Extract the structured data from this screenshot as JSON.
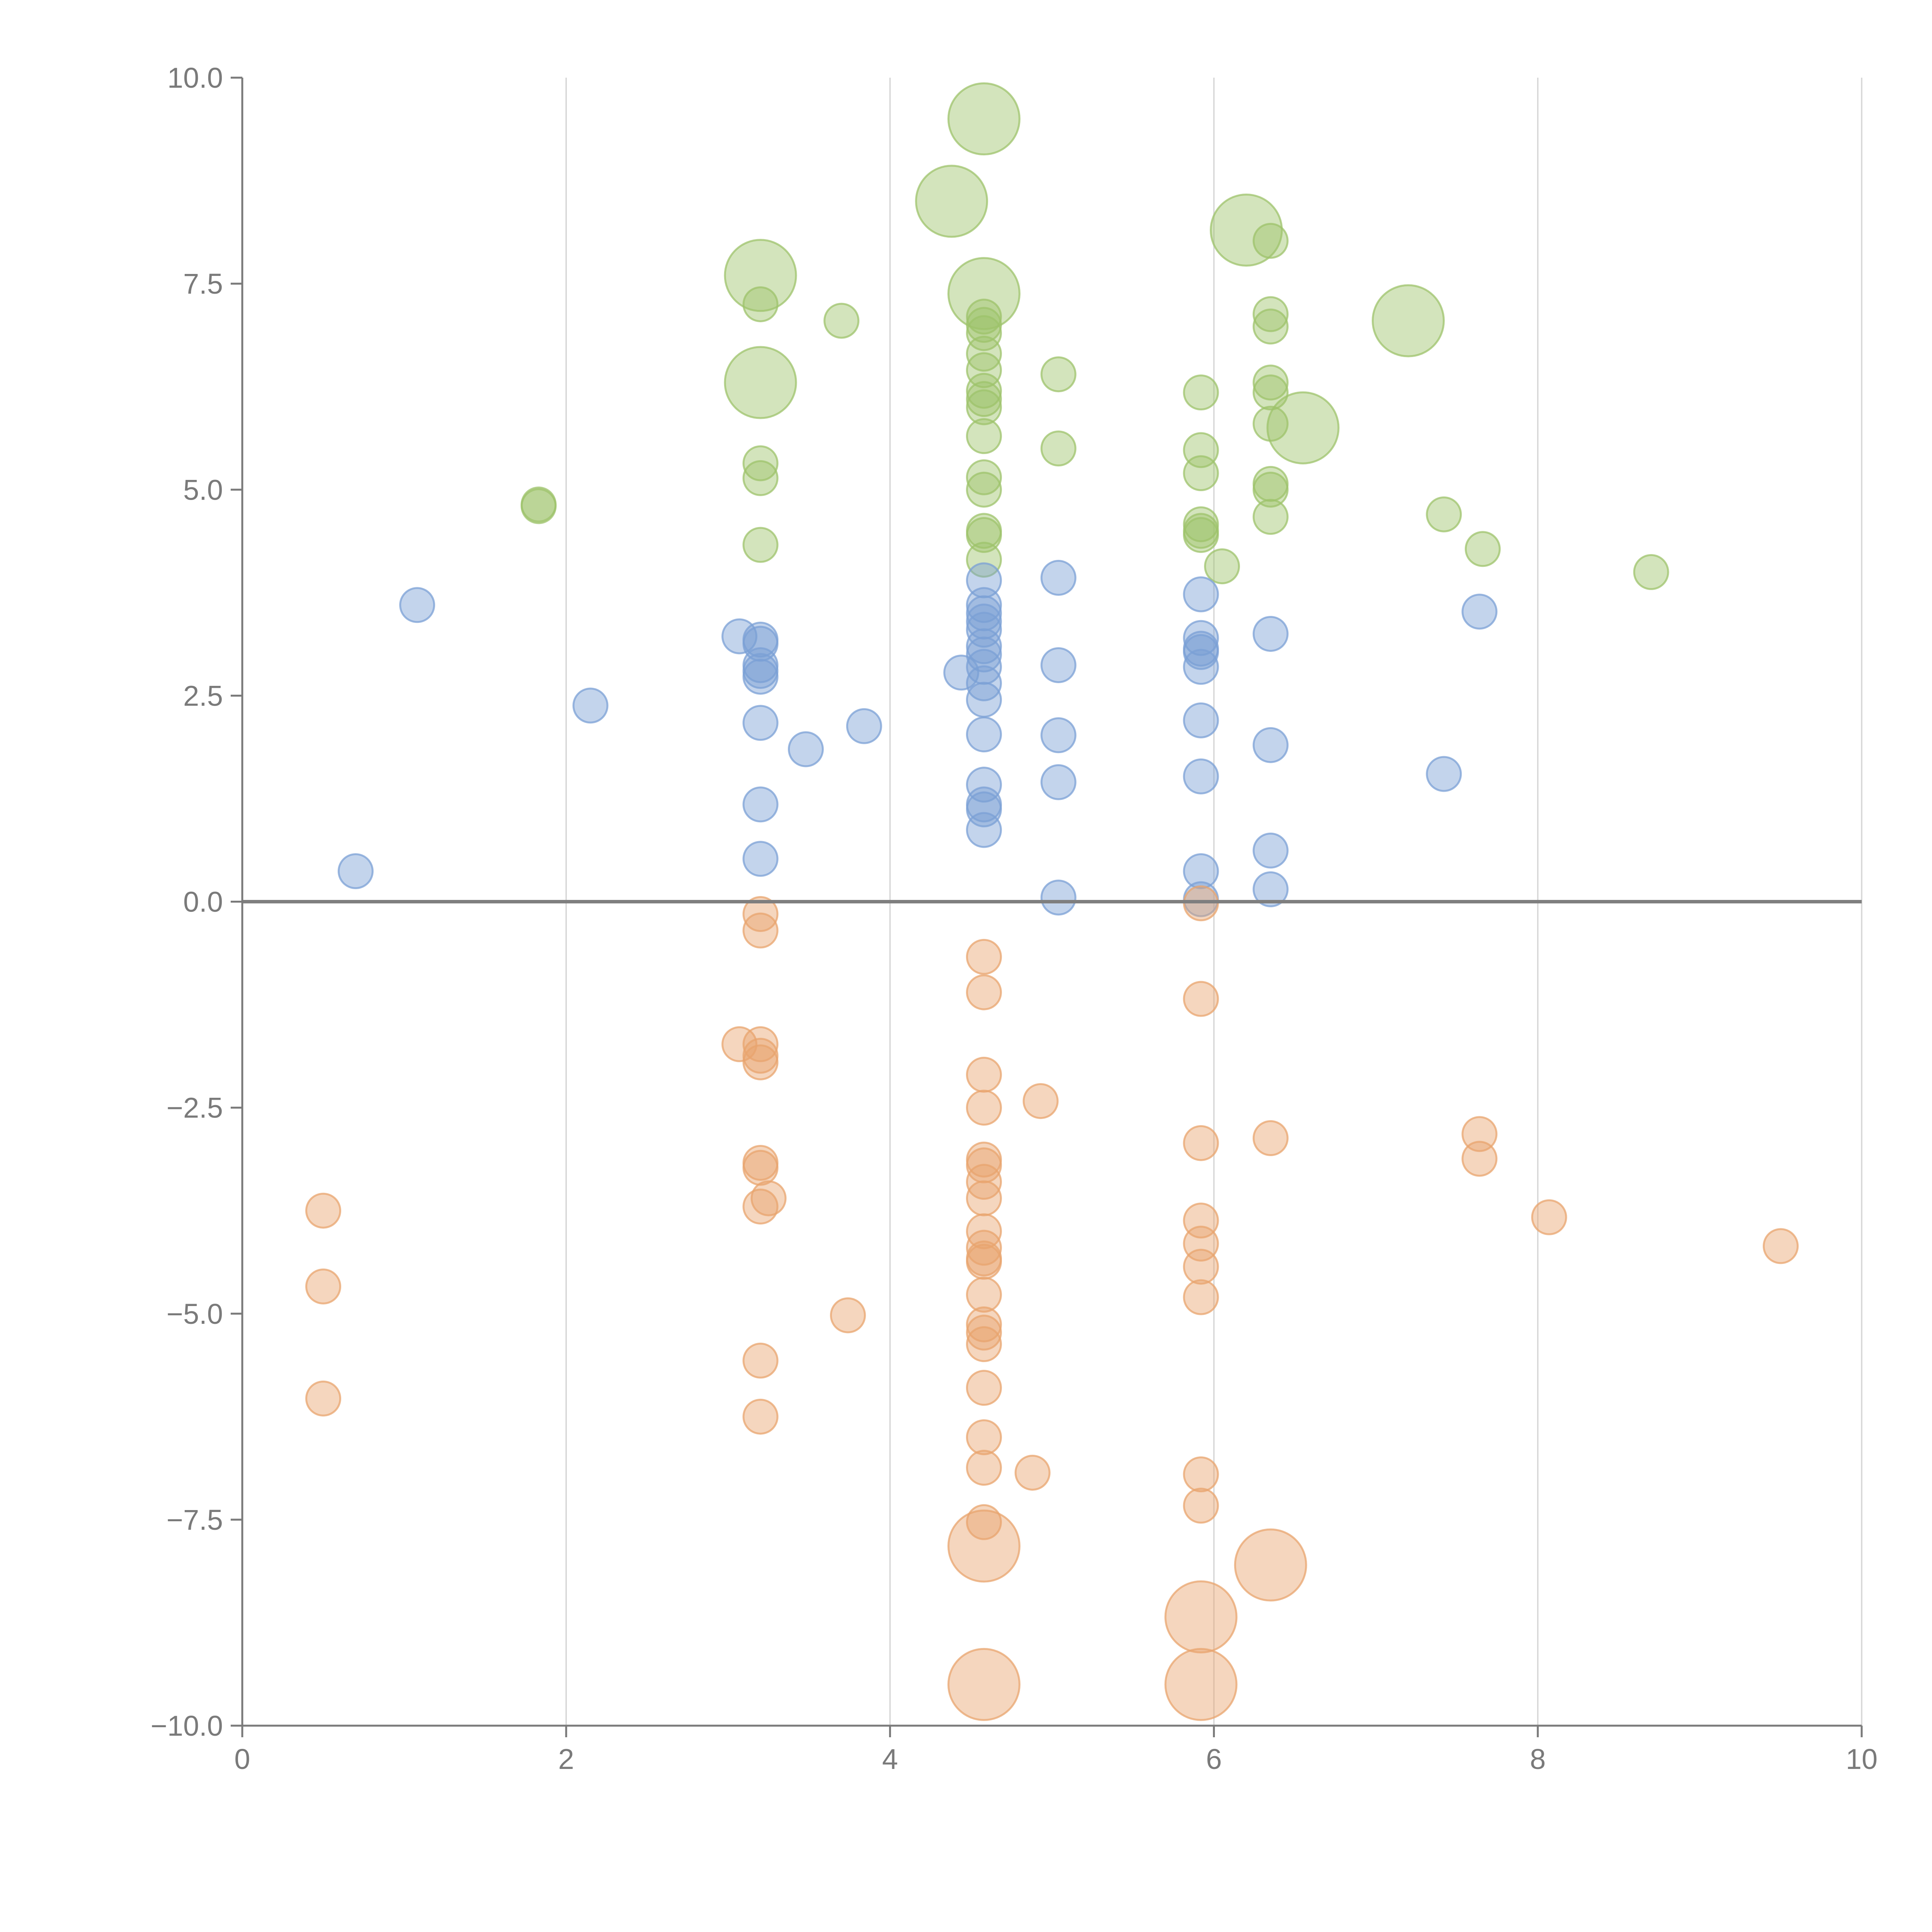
{
  "chart_data": {
    "type": "scatter",
    "xlim": [
      0,
      10
    ],
    "ylim": [
      -10,
      10
    ],
    "x_ticks": [
      0,
      2,
      4,
      6,
      8,
      10
    ],
    "y_ticks": [
      -10,
      -7.5,
      -5,
      -2.5,
      0,
      2.5,
      5,
      7.5,
      10
    ],
    "x_tick_labels": [
      "0",
      "2",
      "4",
      "6",
      "8",
      "10"
    ],
    "y_tick_labels": [
      "−10.0",
      "−7.5",
      "−5.0",
      "−2.5",
      "0.0",
      "2.5",
      "5.0",
      "7.5",
      "10.0"
    ],
    "grid": "vertical",
    "zero_line": true,
    "bubble_sizes": "small (about 0.3 x-units across) and large (about 0.6 x-units across)",
    "series": [
      {
        "color": "#9dc36b",
        "points": [
          {
            "x": 1.83,
            "y": 4.8,
            "size": "small"
          },
          {
            "x": 1.83,
            "y": 4.82,
            "size": "small"
          },
          {
            "x": 3.2,
            "y": 7.25,
            "size": "small"
          },
          {
            "x": 3.2,
            "y": 5.32,
            "size": "small"
          },
          {
            "x": 3.2,
            "y": 5.14,
            "size": "small"
          },
          {
            "x": 3.2,
            "y": 4.33,
            "size": "small"
          },
          {
            "x": 3.7,
            "y": 7.05,
            "size": "small"
          },
          {
            "x": 4.58,
            "y": 7.1,
            "size": "small"
          },
          {
            "x": 4.58,
            "y": 7.0,
            "size": "small"
          },
          {
            "x": 4.58,
            "y": 6.9,
            "size": "small"
          },
          {
            "x": 4.58,
            "y": 6.65,
            "size": "small"
          },
          {
            "x": 4.58,
            "y": 6.45,
            "size": "small"
          },
          {
            "x": 4.58,
            "y": 6.2,
            "size": "small"
          },
          {
            "x": 4.58,
            "y": 6.1,
            "size": "small"
          },
          {
            "x": 4.58,
            "y": 6.0,
            "size": "small"
          },
          {
            "x": 4.58,
            "y": 5.65,
            "size": "small"
          },
          {
            "x": 4.58,
            "y": 5.15,
            "size": "small"
          },
          {
            "x": 4.58,
            "y": 5.0,
            "size": "small"
          },
          {
            "x": 4.58,
            "y": 4.5,
            "size": "small"
          },
          {
            "x": 4.58,
            "y": 4.45,
            "size": "small"
          },
          {
            "x": 4.58,
            "y": 4.15,
            "size": "small"
          },
          {
            "x": 5.04,
            "y": 6.4,
            "size": "small"
          },
          {
            "x": 5.04,
            "y": 5.5,
            "size": "small"
          },
          {
            "x": 5.92,
            "y": 6.18,
            "size": "small"
          },
          {
            "x": 5.92,
            "y": 5.48,
            "size": "small"
          },
          {
            "x": 5.92,
            "y": 5.2,
            "size": "small"
          },
          {
            "x": 5.92,
            "y": 4.58,
            "size": "small"
          },
          {
            "x": 5.92,
            "y": 4.5,
            "size": "small"
          },
          {
            "x": 5.92,
            "y": 4.45,
            "size": "small"
          },
          {
            "x": 6.05,
            "y": 4.07,
            "size": "small"
          },
          {
            "x": 6.35,
            "y": 8.02,
            "size": "small"
          },
          {
            "x": 6.35,
            "y": 7.13,
            "size": "small"
          },
          {
            "x": 6.35,
            "y": 6.98,
            "size": "small"
          },
          {
            "x": 6.35,
            "y": 6.3,
            "size": "small"
          },
          {
            "x": 6.35,
            "y": 6.18,
            "size": "small"
          },
          {
            "x": 6.35,
            "y": 5.8,
            "size": "small"
          },
          {
            "x": 6.35,
            "y": 5.07,
            "size": "small"
          },
          {
            "x": 6.35,
            "y": 5.0,
            "size": "small"
          },
          {
            "x": 6.35,
            "y": 4.67,
            "size": "small"
          },
          {
            "x": 7.42,
            "y": 4.7,
            "size": "small"
          },
          {
            "x": 7.66,
            "y": 4.28,
            "size": "small"
          },
          {
            "x": 8.7,
            "y": 4.0,
            "size": "small"
          },
          {
            "x": 4.58,
            "y": 9.5,
            "size": "large"
          },
          {
            "x": 4.38,
            "y": 8.5,
            "size": "large"
          },
          {
            "x": 3.2,
            "y": 7.6,
            "size": "large"
          },
          {
            "x": 4.58,
            "y": 7.38,
            "size": "large"
          },
          {
            "x": 3.2,
            "y": 6.3,
            "size": "large"
          },
          {
            "x": 6.2,
            "y": 8.15,
            "size": "large"
          },
          {
            "x": 7.2,
            "y": 7.05,
            "size": "large"
          },
          {
            "x": 6.55,
            "y": 5.75,
            "size": "large"
          }
        ]
      },
      {
        "color": "#7ba0d5",
        "points": [
          {
            "x": 0.7,
            "y": 0.37,
            "size": "small"
          },
          {
            "x": 1.08,
            "y": 3.6,
            "size": "small"
          },
          {
            "x": 2.15,
            "y": 2.38,
            "size": "small"
          },
          {
            "x": 3.07,
            "y": 3.22,
            "size": "small"
          },
          {
            "x": 3.2,
            "y": 3.18,
            "size": "small"
          },
          {
            "x": 3.2,
            "y": 3.13,
            "size": "small"
          },
          {
            "x": 3.2,
            "y": 2.87,
            "size": "small"
          },
          {
            "x": 3.2,
            "y": 2.8,
            "size": "small"
          },
          {
            "x": 3.2,
            "y": 2.73,
            "size": "small"
          },
          {
            "x": 3.2,
            "y": 2.17,
            "size": "small"
          },
          {
            "x": 3.2,
            "y": 1.18,
            "size": "small"
          },
          {
            "x": 3.2,
            "y": 0.52,
            "size": "small"
          },
          {
            "x": 3.48,
            "y": 1.85,
            "size": "small"
          },
          {
            "x": 3.84,
            "y": 2.13,
            "size": "small"
          },
          {
            "x": 4.44,
            "y": 2.78,
            "size": "small"
          },
          {
            "x": 4.58,
            "y": 3.9,
            "size": "small"
          },
          {
            "x": 4.58,
            "y": 3.6,
            "size": "small"
          },
          {
            "x": 4.58,
            "y": 3.5,
            "size": "small"
          },
          {
            "x": 4.58,
            "y": 3.4,
            "size": "small"
          },
          {
            "x": 4.58,
            "y": 3.3,
            "size": "small"
          },
          {
            "x": 4.58,
            "y": 3.1,
            "size": "small"
          },
          {
            "x": 4.58,
            "y": 3.0,
            "size": "small"
          },
          {
            "x": 4.58,
            "y": 2.85,
            "size": "small"
          },
          {
            "x": 4.58,
            "y": 2.65,
            "size": "small"
          },
          {
            "x": 4.58,
            "y": 2.45,
            "size": "small"
          },
          {
            "x": 4.58,
            "y": 2.03,
            "size": "small"
          },
          {
            "x": 4.58,
            "y": 1.42,
            "size": "small"
          },
          {
            "x": 4.58,
            "y": 1.18,
            "size": "small"
          },
          {
            "x": 4.58,
            "y": 1.12,
            "size": "small"
          },
          {
            "x": 4.58,
            "y": 0.87,
            "size": "small"
          },
          {
            "x": 5.04,
            "y": 3.93,
            "size": "small"
          },
          {
            "x": 5.04,
            "y": 2.87,
            "size": "small"
          },
          {
            "x": 5.04,
            "y": 2.02,
            "size": "small"
          },
          {
            "x": 5.04,
            "y": 1.45,
            "size": "small"
          },
          {
            "x": 5.04,
            "y": 0.05,
            "size": "small"
          },
          {
            "x": 5.92,
            "y": 3.73,
            "size": "small"
          },
          {
            "x": 5.92,
            "y": 3.2,
            "size": "small"
          },
          {
            "x": 5.92,
            "y": 3.07,
            "size": "small"
          },
          {
            "x": 5.92,
            "y": 3.03,
            "size": "small"
          },
          {
            "x": 5.92,
            "y": 2.85,
            "size": "small"
          },
          {
            "x": 5.92,
            "y": 2.2,
            "size": "small"
          },
          {
            "x": 5.92,
            "y": 1.52,
            "size": "small"
          },
          {
            "x": 5.92,
            "y": 0.37,
            "size": "small"
          },
          {
            "x": 5.92,
            "y": 0.03,
            "size": "small"
          },
          {
            "x": 6.35,
            "y": 3.25,
            "size": "small"
          },
          {
            "x": 6.35,
            "y": 1.9,
            "size": "small"
          },
          {
            "x": 6.35,
            "y": 0.62,
            "size": "small"
          },
          {
            "x": 6.35,
            "y": 0.15,
            "size": "small"
          },
          {
            "x": 7.42,
            "y": 1.55,
            "size": "small"
          },
          {
            "x": 7.64,
            "y": 3.52,
            "size": "small"
          }
        ]
      },
      {
        "color": "#e8a46e",
        "points": [
          {
            "x": 0.5,
            "y": -3.75,
            "size": "small"
          },
          {
            "x": 0.5,
            "y": -4.67,
            "size": "small"
          },
          {
            "x": 0.5,
            "y": -6.03,
            "size": "small"
          },
          {
            "x": 3.07,
            "y": -1.73,
            "size": "small"
          },
          {
            "x": 3.2,
            "y": -0.15,
            "size": "small"
          },
          {
            "x": 3.2,
            "y": -0.35,
            "size": "small"
          },
          {
            "x": 3.2,
            "y": -1.73,
            "size": "small"
          },
          {
            "x": 3.2,
            "y": -1.87,
            "size": "small"
          },
          {
            "x": 3.2,
            "y": -1.95,
            "size": "small"
          },
          {
            "x": 3.2,
            "y": -3.17,
            "size": "small"
          },
          {
            "x": 3.2,
            "y": -3.23,
            "size": "small"
          },
          {
            "x": 3.25,
            "y": -3.6,
            "size": "small"
          },
          {
            "x": 3.2,
            "y": -3.7,
            "size": "small"
          },
          {
            "x": 3.2,
            "y": -5.57,
            "size": "small"
          },
          {
            "x": 3.2,
            "y": -6.25,
            "size": "small"
          },
          {
            "x": 3.74,
            "y": -5.02,
            "size": "small"
          },
          {
            "x": 4.58,
            "y": -0.67,
            "size": "small"
          },
          {
            "x": 4.58,
            "y": -1.1,
            "size": "small"
          },
          {
            "x": 4.58,
            "y": -2.1,
            "size": "small"
          },
          {
            "x": 4.58,
            "y": -2.5,
            "size": "small"
          },
          {
            "x": 4.58,
            "y": -3.13,
            "size": "small"
          },
          {
            "x": 4.58,
            "y": -3.2,
            "size": "small"
          },
          {
            "x": 4.58,
            "y": -3.4,
            "size": "small"
          },
          {
            "x": 4.58,
            "y": -3.6,
            "size": "small"
          },
          {
            "x": 4.58,
            "y": -4.0,
            "size": "small"
          },
          {
            "x": 4.58,
            "y": -4.2,
            "size": "small"
          },
          {
            "x": 4.58,
            "y": -4.33,
            "size": "small"
          },
          {
            "x": 4.58,
            "y": -4.37,
            "size": "small"
          },
          {
            "x": 4.58,
            "y": -4.77,
            "size": "small"
          },
          {
            "x": 4.58,
            "y": -5.13,
            "size": "small"
          },
          {
            "x": 4.58,
            "y": -5.23,
            "size": "small"
          },
          {
            "x": 4.58,
            "y": -5.37,
            "size": "small"
          },
          {
            "x": 4.58,
            "y": -5.9,
            "size": "small"
          },
          {
            "x": 4.58,
            "y": -6.5,
            "size": "small"
          },
          {
            "x": 4.58,
            "y": -6.87,
            "size": "small"
          },
          {
            "x": 4.58,
            "y": -7.53,
            "size": "small"
          },
          {
            "x": 4.88,
            "y": -6.93,
            "size": "small"
          },
          {
            "x": 4.93,
            "y": -2.42,
            "size": "small"
          },
          {
            "x": 5.92,
            "y": -0.02,
            "size": "small"
          },
          {
            "x": 5.92,
            "y": -1.18,
            "size": "small"
          },
          {
            "x": 5.92,
            "y": -2.93,
            "size": "small"
          },
          {
            "x": 5.92,
            "y": -3.87,
            "size": "small"
          },
          {
            "x": 5.92,
            "y": -4.15,
            "size": "small"
          },
          {
            "x": 5.92,
            "y": -4.43,
            "size": "small"
          },
          {
            "x": 5.92,
            "y": -4.8,
            "size": "small"
          },
          {
            "x": 5.92,
            "y": -6.95,
            "size": "small"
          },
          {
            "x": 5.92,
            "y": -7.33,
            "size": "small"
          },
          {
            "x": 6.35,
            "y": -2.87,
            "size": "small"
          },
          {
            "x": 7.64,
            "y": -2.82,
            "size": "small"
          },
          {
            "x": 7.64,
            "y": -3.12,
            "size": "small"
          },
          {
            "x": 8.07,
            "y": -3.83,
            "size": "small"
          },
          {
            "x": 9.5,
            "y": -4.18,
            "size": "small"
          },
          {
            "x": 4.58,
            "y": -7.82,
            "size": "large"
          },
          {
            "x": 4.58,
            "y": -9.5,
            "size": "large"
          },
          {
            "x": 5.92,
            "y": -8.68,
            "size": "large"
          },
          {
            "x": 5.92,
            "y": -9.5,
            "size": "large"
          },
          {
            "x": 6.35,
            "y": -8.05,
            "size": "large"
          }
        ]
      }
    ]
  }
}
